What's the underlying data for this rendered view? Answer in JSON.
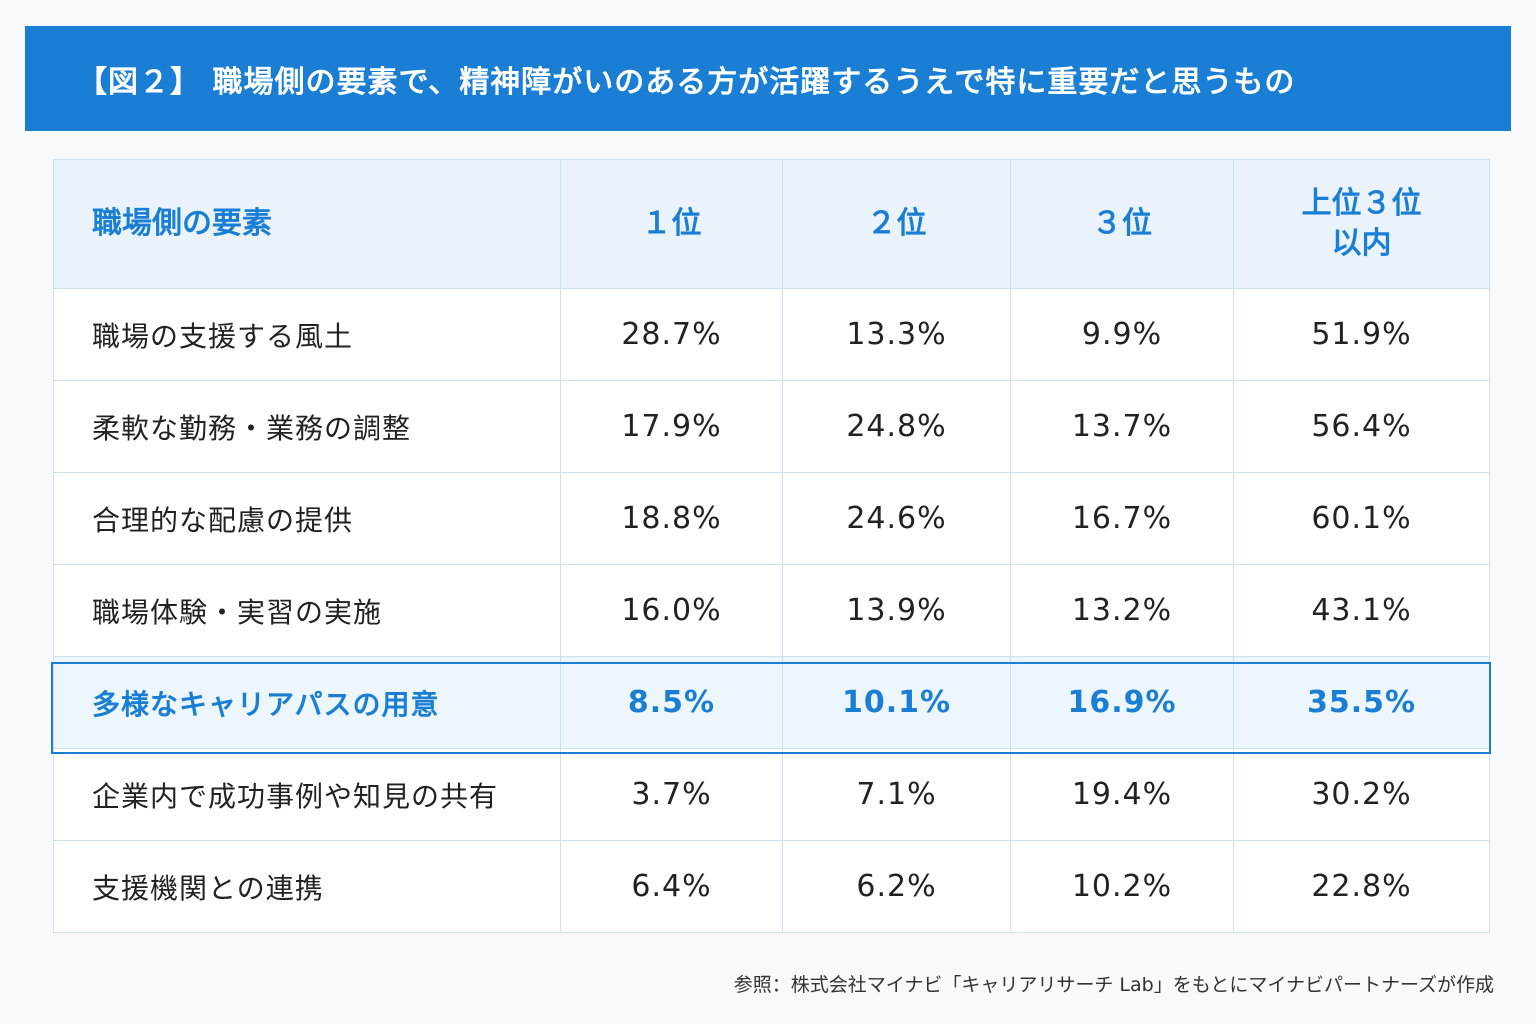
{
  "title": "【図２】 職場側の要素で、精神障がいのある方が活躍するうえで特に重要だと思うもの",
  "chart_data": {
    "type": "table",
    "columns": [
      "職場側の要素",
      "１位",
      "２位",
      "３位",
      "上位３位\n以内"
    ],
    "rows": [
      {
        "label": "職場の支援する風土",
        "values": [
          "28.7%",
          "13.3%",
          "9.9%",
          "51.9%"
        ]
      },
      {
        "label": "柔軟な勤務・業務の調整",
        "values": [
          "17.9%",
          "24.8%",
          "13.7%",
          "56.4%"
        ]
      },
      {
        "label": "合理的な配慮の提供",
        "values": [
          "18.8%",
          "24.6%",
          "16.7%",
          "60.1%"
        ]
      },
      {
        "label": "職場体験・実習の実施",
        "values": [
          "16.0%",
          "13.9%",
          "13.2%",
          "43.1%"
        ]
      },
      {
        "label": "多様なキャリアパスの用意",
        "values": [
          "8.5%",
          "10.1%",
          "16.9%",
          "35.5%"
        ],
        "highlighted": true
      },
      {
        "label": "企業内で成功事例や知見の共有",
        "values": [
          "3.7%",
          "7.1%",
          "19.4%",
          "30.2%"
        ]
      },
      {
        "label": "支援機関との連携",
        "values": [
          "6.4%",
          "6.2%",
          "10.2%",
          "22.8%"
        ]
      }
    ]
  },
  "footnote": "参照：株式会社マイナビ「キャリアリサーチ Lab」をもとにマイナビパートナーズが作成",
  "colors": {
    "accent": "#1a7fd4",
    "header_bg": "#eaf3fc",
    "highlight_bg": "#edf5fd"
  }
}
